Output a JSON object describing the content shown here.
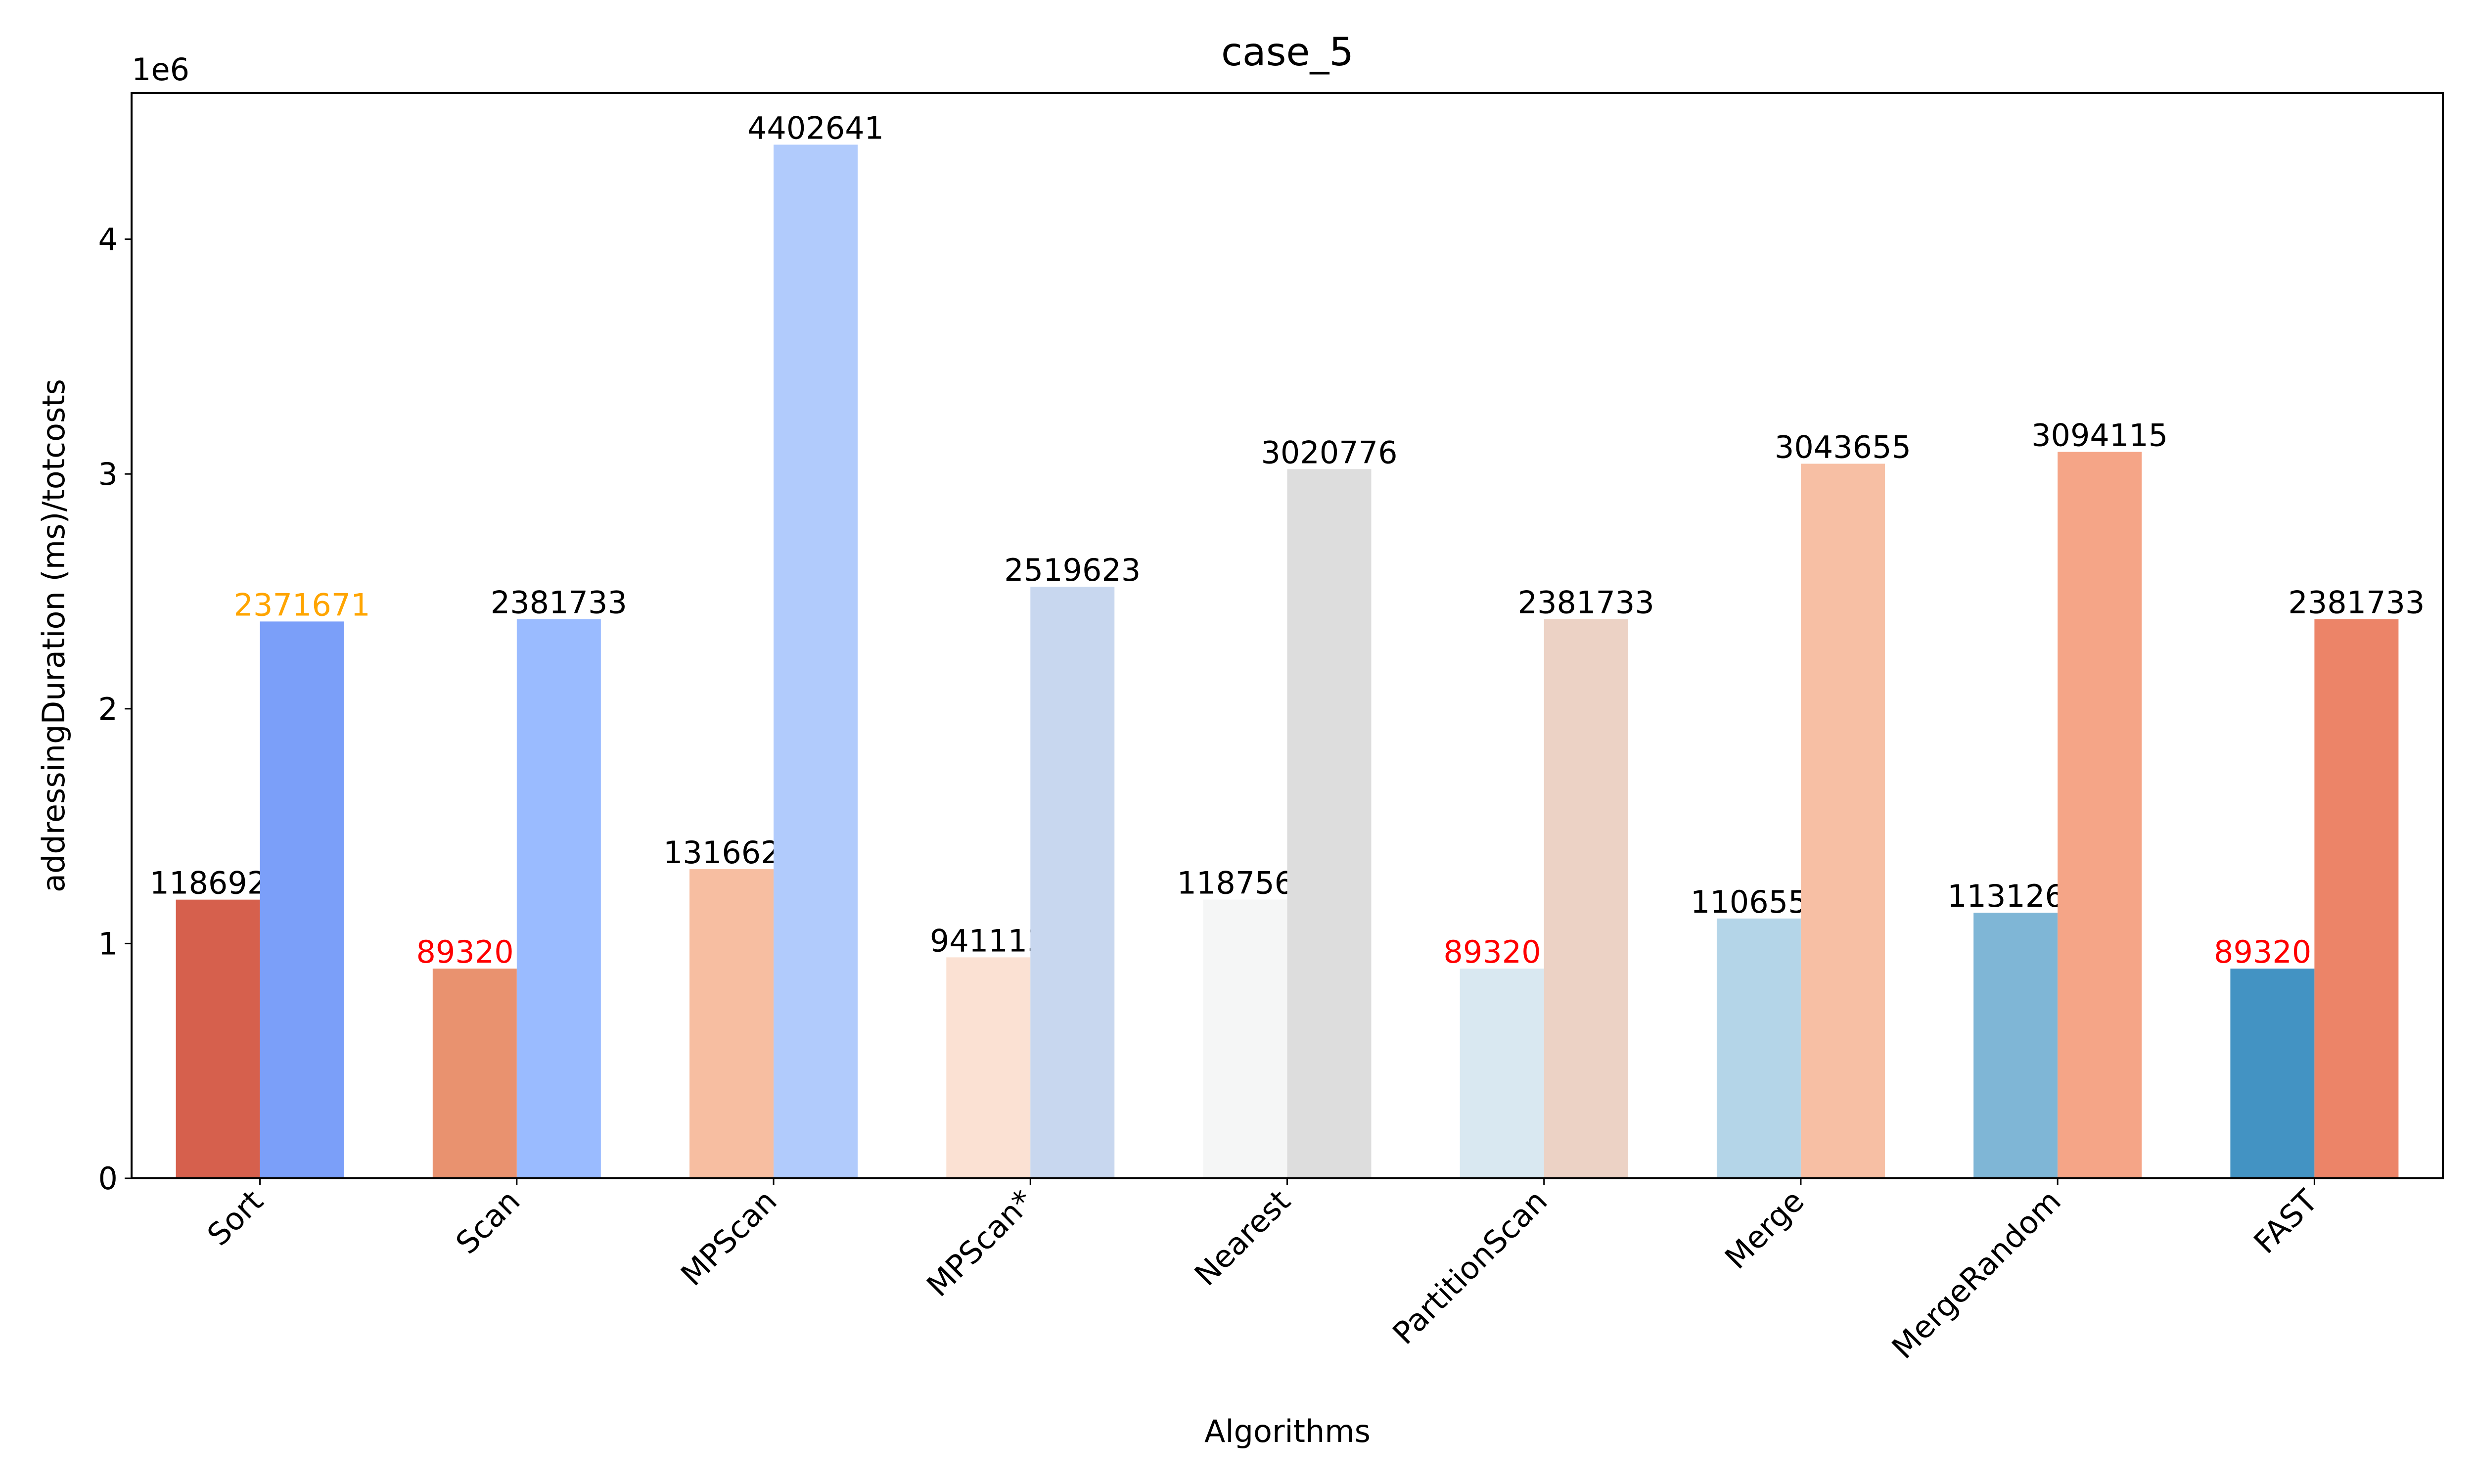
{
  "chart_data": {
    "type": "bar",
    "title": "case_5",
    "xlabel": "Algorithms",
    "ylabel": "addressingDuration (ms)/totcosts",
    "y_multiplier_label": "1e6",
    "y_scale": 1000000,
    "ylim": [
      0,
      4622773
    ],
    "y_ticks": [
      0,
      1,
      2,
      3,
      4
    ],
    "grid": false,
    "legend": "none",
    "categories": [
      "Sort",
      "Scan",
      "MPScan",
      "MPScan*",
      "Nearest",
      "PartitionScan",
      "Merge",
      "MergeRandom",
      "FAST"
    ],
    "series": [
      {
        "values": [
          1186925,
          893201,
          1316629,
          941113,
          1187565,
          893201,
          1106553,
          1131269,
          893201
        ],
        "colors": [
          "#d6604d",
          "#e9926f",
          "#f7bea1",
          "#fbe1d3",
          "#f5f6f6",
          "#d9e8f1",
          "#b4d5e8",
          "#7fb6d6",
          "#4393c3"
        ],
        "label_colors": [
          "#000000",
          "#ff0000",
          "#000000",
          "#000000",
          "#000000",
          "#ff0000",
          "#000000",
          "#000000",
          "#ff0000"
        ]
      },
      {
        "values": [
          2371671,
          2381733,
          4402641,
          2519623,
          3020776,
          2381733,
          3043655,
          3094115,
          2381733
        ],
        "colors": [
          "#7b9ff9",
          "#9abbff",
          "#b1cbfc",
          "#c8d7ef",
          "#dddddd",
          "#ecd2c5",
          "#f7bfa4",
          "#f5a587",
          "#ec8468"
        ],
        "label_colors": [
          "#ffa500",
          "#000000",
          "#000000",
          "#000000",
          "#000000",
          "#000000",
          "#000000",
          "#000000",
          "#000000"
        ]
      }
    ]
  }
}
